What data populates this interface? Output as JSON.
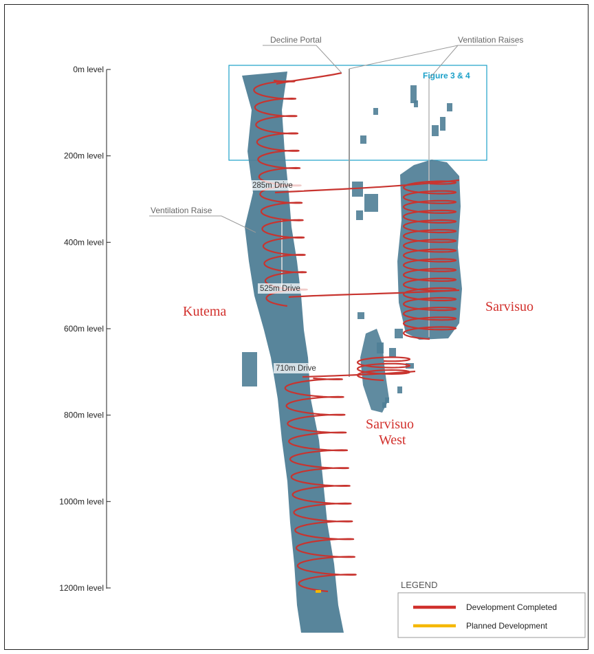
{
  "levels": [
    {
      "label": "0m level",
      "depth": 0
    },
    {
      "label": "200m level",
      "depth": 200
    },
    {
      "label": "400m level",
      "depth": 400
    },
    {
      "label": "600m level",
      "depth": 600
    },
    {
      "label": "800m level",
      "depth": 800
    },
    {
      "label": "1000m level",
      "depth": 1000
    },
    {
      "label": "1200m level",
      "depth": 1200
    }
  ],
  "callouts": {
    "decline_portal": "Decline Portal",
    "ventilation_raises": "Ventilation Raises",
    "ventilation_raise": "Ventilation Raise"
  },
  "drives": [
    {
      "label": "285m Drive",
      "depth": 285
    },
    {
      "label": "525m Drive",
      "depth": 525
    },
    {
      "label": "710m Drive",
      "depth": 710
    }
  ],
  "zones": {
    "kutema": "Kutema",
    "sarvisuo": "Sarvisuo",
    "sarvisuo_west_line1": "Sarvisuo",
    "sarvisuo_west_line2": "West"
  },
  "figure_box_label": "Figure 3 & 4",
  "legend": {
    "title": "LEGEND",
    "items": [
      {
        "label": "Development Completed",
        "color": "#d0302c"
      },
      {
        "label": "Planned Development",
        "color": "#f5b800"
      }
    ]
  },
  "colors": {
    "orebody": "#4f7e96",
    "development": "#c8342f",
    "figure_box": "#1aa0c8",
    "zone_label": "#d2302c"
  }
}
